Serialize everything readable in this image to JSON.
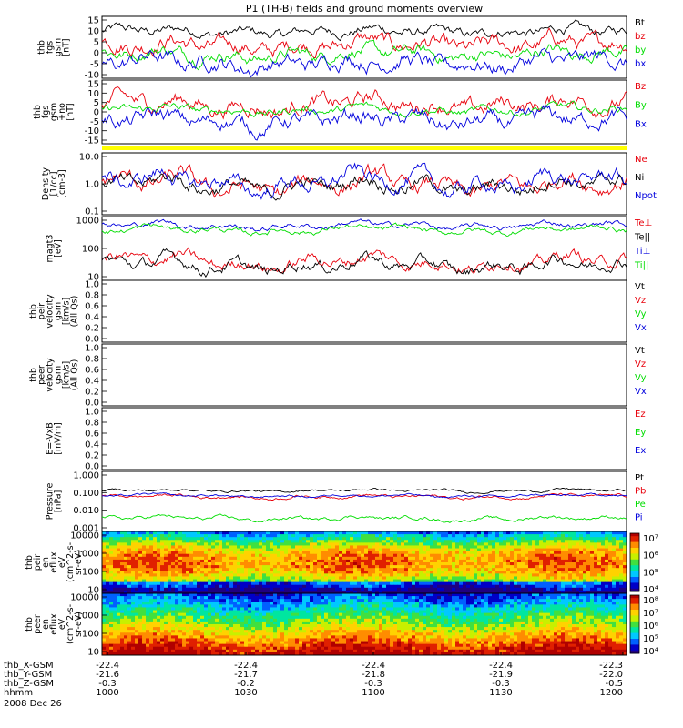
{
  "title": "P1 (TH-B) fields and ground moments overview",
  "colors": {
    "black": "#000000",
    "red": "#e8000b",
    "green": "#00dd00",
    "blue": "#0000dd",
    "yellow": "#ffff00"
  },
  "chart_data": [
    {
      "id": "fgs",
      "type": "line",
      "ylabel": [
        "thb",
        "fgs",
        "gsm",
        "[nT]"
      ],
      "yticks": [
        "15",
        "10",
        "5",
        "0",
        "-5",
        "-10"
      ],
      "ylim": [
        -12,
        16
      ],
      "series": [
        {
          "name": "Bt",
          "color": "black",
          "mean": 9,
          "amp": 3
        },
        {
          "name": "bz",
          "color": "red",
          "mean": 3,
          "amp": 5
        },
        {
          "name": "by",
          "color": "green",
          "mean": -1,
          "amp": 4
        },
        {
          "name": "bx",
          "color": "blue",
          "mean": -5,
          "amp": 5
        }
      ]
    },
    {
      "id": "fgs_dsl",
      "type": "line",
      "ylabel": [
        "thb",
        "fgs",
        "gsm",
        "+no",
        "[nT]"
      ],
      "yticks": [
        "15",
        "10",
        "5",
        "0",
        "-5",
        "-10",
        "-15"
      ],
      "ylim": [
        -18,
        16
      ],
      "series": [
        {
          "name": "Bz",
          "color": "red",
          "mean": 3,
          "amp": 6
        },
        {
          "name": "By",
          "color": "green",
          "mean": 0,
          "amp": 3
        },
        {
          "name": "Bx",
          "color": "blue",
          "mean": -6,
          "amp": 6
        }
      ]
    },
    {
      "id": "density",
      "type": "line",
      "scale": "log",
      "ylabel": [
        "Density",
        "[1/cc]",
        "[cm-3]"
      ],
      "yticks": [
        "10.0",
        "1.0",
        "0.1"
      ],
      "ylim": [
        0.1,
        10
      ],
      "series": [
        {
          "name": "Ne",
          "color": "red",
          "mean": 0.9,
          "amp": 0.35
        },
        {
          "name": "Ni",
          "color": "black",
          "mean": 0.9,
          "amp": 0.3
        },
        {
          "name": "Npot",
          "color": "blue",
          "mean": 1.1,
          "amp": 0.35
        }
      ]
    },
    {
      "id": "temperature",
      "type": "line",
      "scale": "log",
      "ylabel": [
        "magt3",
        "[eV]"
      ],
      "yticks": [
        "1000",
        "100",
        "10"
      ],
      "ylim": [
        10,
        1000
      ],
      "series": [
        {
          "name": "Te⊥",
          "color": "red",
          "mean": 38,
          "amp": 0.25
        },
        {
          "name": "Te||",
          "color": "black",
          "mean": 30,
          "amp": 0.25
        },
        {
          "name": "Ti⊥",
          "color": "blue",
          "mean": 520,
          "amp": 0.12
        },
        {
          "name": "Ti||",
          "color": "green",
          "mean": 380,
          "amp": 0.12
        }
      ]
    },
    {
      "id": "velocity_peir",
      "type": "line",
      "ylabel": [
        "thb",
        "peir",
        "velocity",
        "gsm",
        "[km/s]",
        "(All Qs)"
      ],
      "yticks": [
        "1.0",
        "0.8",
        "0.6",
        "0.4",
        "0.2",
        "0.0"
      ],
      "ylim": [
        0,
        1
      ],
      "series": [
        {
          "name": "Vt",
          "color": "black"
        },
        {
          "name": "Vz",
          "color": "red"
        },
        {
          "name": "Vy",
          "color": "green"
        },
        {
          "name": "Vx",
          "color": "blue"
        }
      ]
    },
    {
      "id": "velocity_peer",
      "type": "line",
      "ylabel": [
        "thb",
        "peer",
        "velocity",
        "gsm",
        "[km/s]",
        "(All Qs)"
      ],
      "yticks": [
        "1.0",
        "0.8",
        "0.6",
        "0.4",
        "0.2",
        "0.0"
      ],
      "ylim": [
        0,
        1
      ],
      "series": [
        {
          "name": "Vt",
          "color": "black"
        },
        {
          "name": "Vz",
          "color": "red"
        },
        {
          "name": "Vy",
          "color": "green"
        },
        {
          "name": "Vx",
          "color": "blue"
        }
      ]
    },
    {
      "id": "efield",
      "type": "line",
      "ylabel": [
        "E=-VxB",
        "[mV/m]"
      ],
      "yticks": [
        "1.0",
        "0.8",
        "0.6",
        "0.4",
        "0.2",
        "0.0"
      ],
      "ylim": [
        0,
        1
      ],
      "series": [
        {
          "name": "Ez",
          "color": "red"
        },
        {
          "name": "Ey",
          "color": "green"
        },
        {
          "name": "Ex",
          "color": "blue"
        }
      ]
    },
    {
      "id": "pressure",
      "type": "line",
      "scale": "log",
      "ylabel": [
        "Pressure",
        "[nPa]"
      ],
      "yticks": [
        "1.000",
        "0.100",
        "0.010",
        "0.001"
      ],
      "ylim": [
        0.001,
        1
      ],
      "series": [
        {
          "name": "Pt",
          "color": "black",
          "mean": 0.11,
          "amp": 0.08
        },
        {
          "name": "Pb",
          "color": "red",
          "mean": 0.055,
          "amp": 0.1
        },
        {
          "name": "Pe",
          "color": "green",
          "mean": 0.0045,
          "amp": 0.12
        },
        {
          "name": "Pi",
          "color": "blue",
          "mean": 0.06,
          "amp": 0.08
        }
      ]
    },
    {
      "id": "peir_spec",
      "type": "heatmap",
      "ylabel": [
        "thb",
        "peir",
        "en",
        "eflux",
        "eV",
        "(cm^2-s-",
        "sr-eV)"
      ],
      "yticks": [
        "10000",
        "1000",
        "100",
        "10"
      ],
      "colorbar": [
        "10⁷",
        "10⁶",
        "10⁵",
        "10⁴"
      ]
    },
    {
      "id": "peer_spec",
      "type": "heatmap",
      "ylabel": [
        "thb",
        "peer",
        "en",
        "eflux",
        "eV",
        "(cm^2-s-",
        "sr-eV)"
      ],
      "yticks": [
        "10000",
        "1000",
        "100",
        "10"
      ],
      "colorbar": [
        "10⁸",
        "10⁷",
        "10⁶",
        "10⁵",
        "10⁴"
      ]
    }
  ],
  "xaxis": {
    "rows": [
      {
        "label": "thb_X-GSM",
        "values": [
          "-22.4",
          "-22.4",
          "-22.4",
          "-22.4",
          "-22.3"
        ]
      },
      {
        "label": "thb_Y-GSM",
        "values": [
          "-21.6",
          "-21.7",
          "-21.8",
          "-21.9",
          "-22.0"
        ]
      },
      {
        "label": "thb_Z-GSM",
        "values": [
          "-0.3",
          "-0.2",
          "-0.3",
          "-0.3",
          "-0.5"
        ]
      },
      {
        "label": "hhmm",
        "values": [
          "1000",
          "1030",
          "1100",
          "1130",
          "1200"
        ]
      }
    ],
    "date": "2008 Dec 26"
  }
}
